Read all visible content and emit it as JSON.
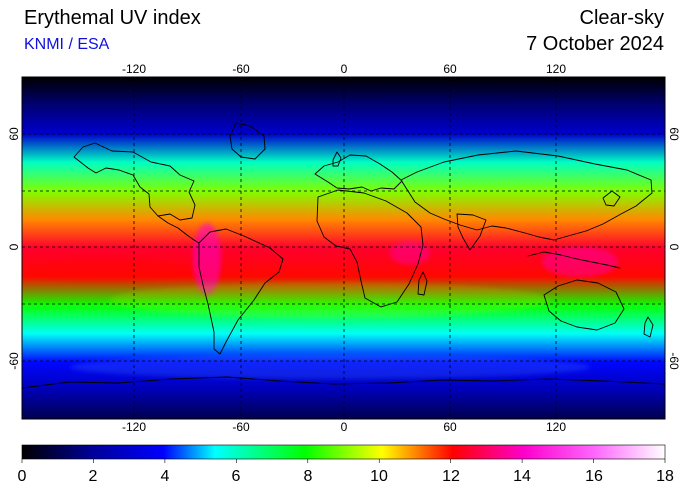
{
  "header": {
    "title": "Erythemal UV index",
    "credit": "KNMI / ESA",
    "condition": "Clear-sky",
    "date": "7 October 2024"
  },
  "map": {
    "projection": "plate-carree",
    "lon_range": [
      -180,
      180
    ],
    "lat_range": [
      -90,
      90
    ],
    "background_color": "#000000",
    "gridline_style": "dashed",
    "lon_ticks": [
      "-120",
      "-60",
      "0",
      "60",
      "120"
    ],
    "lat_ticks": [
      "60",
      "0",
      "-60"
    ],
    "field_profile": [
      {
        "lat": 90,
        "uv": 0
      },
      {
        "lat": 75,
        "uv": 1.5
      },
      {
        "lat": 60,
        "uv": 3
      },
      {
        "lat": 45,
        "uv": 6
      },
      {
        "lat": 30,
        "uv": 9
      },
      {
        "lat": 15,
        "uv": 11
      },
      {
        "lat": 0,
        "uv": 12.5
      },
      {
        "lat": -15,
        "uv": 12
      },
      {
        "lat": -30,
        "uv": 8
      },
      {
        "lat": -45,
        "uv": 5.5
      },
      {
        "lat": -60,
        "uv": 4
      },
      {
        "lat": -75,
        "uv": 2.5
      },
      {
        "lat": -90,
        "uv": 1
      }
    ]
  },
  "colorbar": {
    "min": 0,
    "max": 18,
    "ticks": [
      "0",
      "2",
      "4",
      "6",
      "8",
      "10",
      "12",
      "14",
      "16",
      "18"
    ],
    "colors": [
      {
        "stop": 0.0,
        "color": "#000000"
      },
      {
        "stop": 0.11,
        "color": "#000099"
      },
      {
        "stop": 0.22,
        "color": "#0000ff"
      },
      {
        "stop": 0.3,
        "color": "#00ffff"
      },
      {
        "stop": 0.44,
        "color": "#00ff00"
      },
      {
        "stop": 0.56,
        "color": "#ffff00"
      },
      {
        "stop": 0.67,
        "color": "#ff0000"
      },
      {
        "stop": 0.78,
        "color": "#ff00cc"
      },
      {
        "stop": 0.89,
        "color": "#ff66ff"
      },
      {
        "stop": 1.0,
        "color": "#ffffff"
      }
    ]
  }
}
